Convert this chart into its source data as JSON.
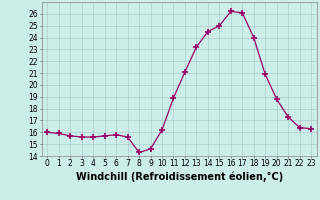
{
  "x": [
    0,
    1,
    2,
    3,
    4,
    5,
    6,
    7,
    8,
    9,
    10,
    11,
    12,
    13,
    14,
    15,
    16,
    17,
    18,
    19,
    20,
    21,
    22,
    23
  ],
  "y": [
    16.0,
    15.9,
    15.7,
    15.6,
    15.6,
    15.7,
    15.8,
    15.6,
    14.3,
    14.6,
    16.2,
    18.9,
    21.1,
    23.2,
    24.5,
    25.0,
    26.2,
    26.1,
    24.0,
    20.9,
    18.8,
    17.3,
    16.4,
    16.3
  ],
  "line_color": "#990066",
  "marker": "+",
  "marker_size": 4,
  "marker_linewidth": 1.2,
  "bg_color": "#cceee8",
  "grid_color": "#aacccc",
  "xlabel": "Windchill (Refroidissement éolien,°C)",
  "xlim": [
    -0.5,
    23.5
  ],
  "ylim": [
    14,
    27
  ],
  "yticks": [
    14,
    15,
    16,
    17,
    18,
    19,
    20,
    21,
    22,
    23,
    24,
    25,
    26
  ],
  "xticks": [
    0,
    1,
    2,
    3,
    4,
    5,
    6,
    7,
    8,
    9,
    10,
    11,
    12,
    13,
    14,
    15,
    16,
    17,
    18,
    19,
    20,
    21,
    22,
    23
  ],
  "tick_fontsize": 5.5,
  "xlabel_fontsize": 7.0
}
